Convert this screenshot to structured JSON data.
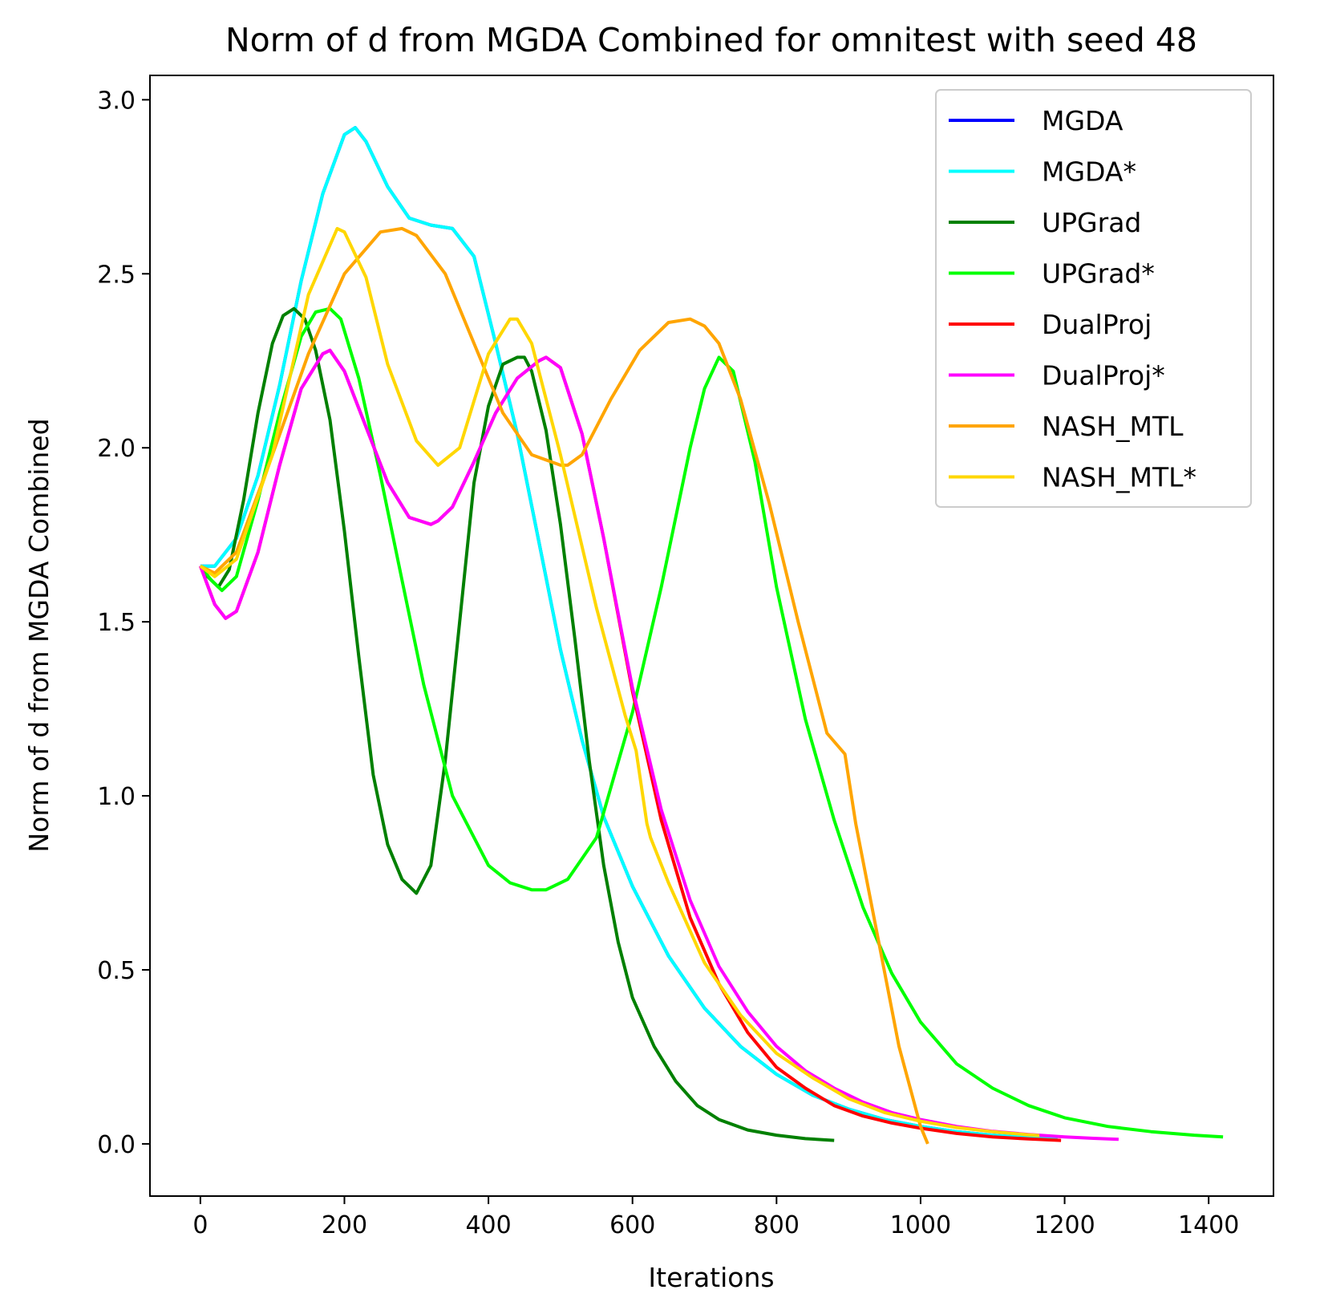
{
  "chart_data": {
    "type": "line",
    "title": "Norm of d from MGDA Combined for omnitest with seed 48",
    "xlabel": "Iterations",
    "ylabel": "Norm of d from MGDA Combined",
    "xlim": [
      -70,
      1490
    ],
    "ylim": [
      -0.15,
      3.07
    ],
    "xticks": [
      0,
      200,
      400,
      600,
      800,
      1000,
      1200,
      1400
    ],
    "yticks": [
      0.0,
      0.5,
      1.0,
      1.5,
      2.0,
      2.5,
      3.0
    ],
    "xtick_labels": [
      "0",
      "200",
      "400",
      "600",
      "800",
      "1000",
      "1200",
      "1400"
    ],
    "ytick_labels": [
      "0.0",
      "0.5",
      "1.0",
      "1.5",
      "2.0",
      "2.5",
      "3.0"
    ],
    "grid": false,
    "legend_position": "top-right",
    "series": [
      {
        "name": "MGDA",
        "color": "#0000ff",
        "x": [
          0,
          20,
          50,
          80,
          110,
          140,
          170,
          200,
          215,
          230,
          260,
          290,
          320,
          350,
          380,
          410,
          440,
          470,
          500,
          530,
          560,
          600,
          650,
          700,
          750,
          800,
          850,
          900,
          950,
          1000,
          1050,
          1100,
          1150,
          1190
        ],
        "y": [
          1.66,
          1.66,
          1.74,
          1.92,
          2.18,
          2.48,
          2.73,
          2.9,
          2.92,
          2.88,
          2.75,
          2.66,
          2.64,
          2.63,
          2.55,
          2.3,
          2.04,
          1.73,
          1.42,
          1.16,
          0.94,
          0.74,
          0.54,
          0.39,
          0.28,
          0.2,
          0.14,
          0.1,
          0.07,
          0.05,
          0.035,
          0.025,
          0.018,
          0.013
        ]
      },
      {
        "name": "MGDA*",
        "color": "#00ffff",
        "x": [
          0,
          20,
          50,
          80,
          110,
          140,
          170,
          200,
          215,
          230,
          260,
          290,
          320,
          350,
          380,
          410,
          440,
          470,
          500,
          530,
          560,
          600,
          650,
          700,
          750,
          800,
          850,
          900,
          950,
          1000,
          1050,
          1100,
          1150,
          1190
        ],
        "y": [
          1.66,
          1.66,
          1.74,
          1.92,
          2.18,
          2.48,
          2.73,
          2.9,
          2.92,
          2.88,
          2.75,
          2.66,
          2.64,
          2.63,
          2.55,
          2.3,
          2.04,
          1.73,
          1.42,
          1.16,
          0.94,
          0.74,
          0.54,
          0.39,
          0.28,
          0.2,
          0.14,
          0.1,
          0.07,
          0.05,
          0.035,
          0.025,
          0.018,
          0.013
        ]
      },
      {
        "name": "UPGrad",
        "color": "#008000",
        "x": [
          0,
          10,
          25,
          40,
          60,
          80,
          100,
          115,
          130,
          145,
          160,
          180,
          200,
          220,
          240,
          260,
          280,
          300,
          320,
          340,
          360,
          380,
          400,
          420,
          440,
          450,
          460,
          480,
          500,
          520,
          540,
          560,
          580,
          600,
          630,
          660,
          690,
          720,
          760,
          800,
          840,
          880
        ],
        "y": [
          1.66,
          1.63,
          1.6,
          1.65,
          1.85,
          2.1,
          2.3,
          2.38,
          2.4,
          2.37,
          2.28,
          2.08,
          1.76,
          1.4,
          1.06,
          0.86,
          0.76,
          0.72,
          0.8,
          1.1,
          1.5,
          1.9,
          2.12,
          2.24,
          2.26,
          2.26,
          2.22,
          2.05,
          1.78,
          1.45,
          1.1,
          0.8,
          0.58,
          0.42,
          0.28,
          0.18,
          0.11,
          0.07,
          0.04,
          0.025,
          0.015,
          0.01
        ]
      },
      {
        "name": "UPGrad*",
        "color": "#00ff00",
        "x": [
          0,
          15,
          30,
          50,
          80,
          110,
          140,
          160,
          180,
          195,
          220,
          250,
          280,
          310,
          350,
          400,
          430,
          460,
          480,
          510,
          550,
          600,
          640,
          680,
          700,
          720,
          740,
          770,
          800,
          840,
          880,
          920,
          960,
          1000,
          1050,
          1100,
          1150,
          1200,
          1260,
          1320,
          1380,
          1420
        ],
        "y": [
          1.66,
          1.62,
          1.59,
          1.63,
          1.85,
          2.1,
          2.32,
          2.39,
          2.4,
          2.37,
          2.2,
          1.92,
          1.62,
          1.32,
          1.0,
          0.8,
          0.75,
          0.73,
          0.73,
          0.76,
          0.88,
          1.24,
          1.6,
          2.0,
          2.17,
          2.26,
          2.22,
          1.96,
          1.6,
          1.22,
          0.93,
          0.68,
          0.49,
          0.35,
          0.23,
          0.16,
          0.11,
          0.075,
          0.05,
          0.035,
          0.025,
          0.02
        ]
      },
      {
        "name": "DualProj",
        "color": "#ff0000",
        "x": [
          0,
          20,
          35,
          50,
          80,
          110,
          140,
          170,
          180,
          200,
          230,
          260,
          290,
          320,
          330,
          350,
          380,
          410,
          440,
          470,
          480,
          500,
          530,
          560,
          600,
          640,
          680,
          720,
          760,
          800,
          840,
          880,
          920,
          960,
          1000,
          1050,
          1100,
          1150,
          1195
        ],
        "y": [
          1.66,
          1.55,
          1.51,
          1.53,
          1.7,
          1.95,
          2.17,
          2.27,
          2.28,
          2.22,
          2.06,
          1.9,
          1.8,
          1.78,
          1.79,
          1.83,
          1.96,
          2.1,
          2.2,
          2.25,
          2.26,
          2.23,
          2.04,
          1.74,
          1.3,
          0.93,
          0.65,
          0.46,
          0.32,
          0.22,
          0.16,
          0.11,
          0.08,
          0.06,
          0.045,
          0.03,
          0.02,
          0.014,
          0.01
        ]
      },
      {
        "name": "DualProj*",
        "color": "#ff00ff",
        "x": [
          0,
          20,
          35,
          50,
          80,
          110,
          140,
          170,
          180,
          200,
          230,
          260,
          290,
          320,
          330,
          350,
          380,
          410,
          440,
          470,
          480,
          500,
          530,
          560,
          600,
          640,
          680,
          720,
          760,
          800,
          840,
          880,
          920,
          960,
          1000,
          1050,
          1100,
          1150,
          1200,
          1240,
          1275
        ],
        "y": [
          1.66,
          1.55,
          1.51,
          1.53,
          1.7,
          1.95,
          2.17,
          2.27,
          2.28,
          2.22,
          2.06,
          1.9,
          1.8,
          1.78,
          1.79,
          1.83,
          1.96,
          2.1,
          2.2,
          2.25,
          2.26,
          2.23,
          2.04,
          1.74,
          1.31,
          0.96,
          0.7,
          0.51,
          0.38,
          0.28,
          0.21,
          0.16,
          0.12,
          0.09,
          0.07,
          0.05,
          0.036,
          0.027,
          0.02,
          0.016,
          0.013
        ]
      },
      {
        "name": "NASH_MTL",
        "color": "#ffa500",
        "x": [
          0,
          20,
          50,
          100,
          150,
          200,
          250,
          280,
          300,
          340,
          380,
          420,
          460,
          500,
          510,
          530,
          570,
          610,
          650,
          680,
          700,
          720,
          750,
          790,
          830,
          870,
          895,
          910,
          940,
          970,
          1000,
          1010
        ],
        "y": [
          1.66,
          1.64,
          1.7,
          1.98,
          2.27,
          2.5,
          2.62,
          2.63,
          2.61,
          2.5,
          2.3,
          2.1,
          1.98,
          1.95,
          1.95,
          1.98,
          2.14,
          2.28,
          2.36,
          2.37,
          2.35,
          2.3,
          2.14,
          1.84,
          1.5,
          1.18,
          1.12,
          0.92,
          0.6,
          0.28,
          0.05,
          0.0
        ]
      },
      {
        "name": "NASH_MTL*",
        "color": "#ffd700",
        "x": [
          0,
          20,
          50,
          100,
          150,
          190,
          200,
          230,
          260,
          300,
          330,
          360,
          400,
          430,
          440,
          460,
          500,
          550,
          590,
          605,
          620,
          625,
          650,
          700,
          750,
          800,
          850,
          900,
          950,
          1000,
          1050,
          1100,
          1150,
          1165
        ],
        "y": [
          1.66,
          1.63,
          1.68,
          1.98,
          2.44,
          2.63,
          2.62,
          2.49,
          2.24,
          2.02,
          1.95,
          2.0,
          2.27,
          2.37,
          2.37,
          2.3,
          1.98,
          1.54,
          1.23,
          1.13,
          0.92,
          0.88,
          0.75,
          0.52,
          0.37,
          0.26,
          0.19,
          0.13,
          0.09,
          0.065,
          0.047,
          0.035,
          0.026,
          0.024
        ]
      }
    ]
  }
}
